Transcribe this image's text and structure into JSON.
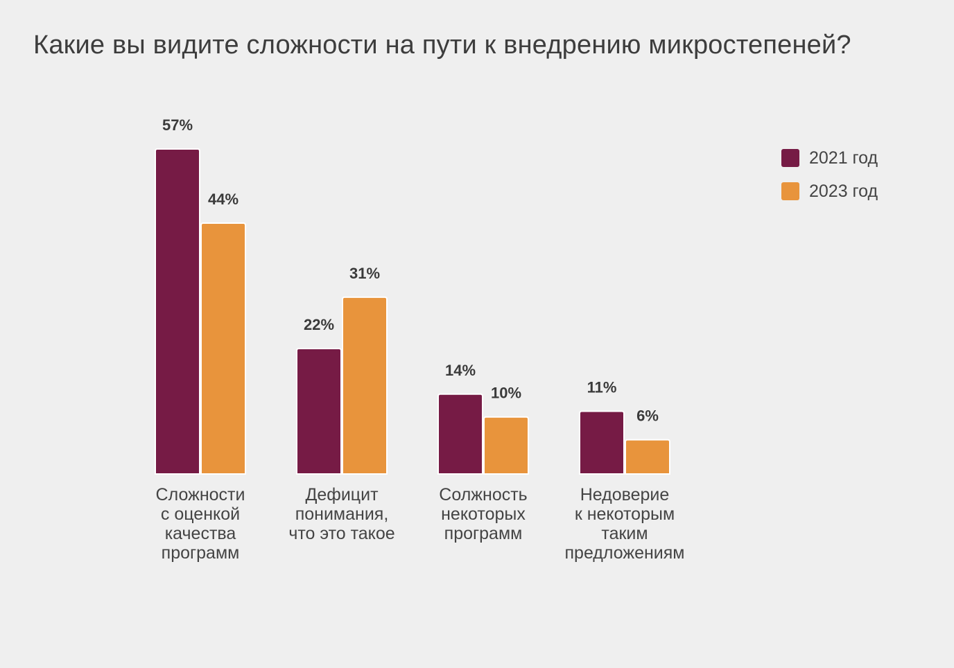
{
  "chart_data": {
    "type": "bar",
    "title": "Какие вы видите сложности на пути к внедрению микростепеней?",
    "categories": [
      [
        "Сложности",
        "с оценкой",
        "качества",
        "программ"
      ],
      [
        "Дефицит",
        "понимания,",
        "что это такое"
      ],
      [
        "Солжность",
        "некоторых",
        "программ"
      ],
      [
        "Недоверие",
        "к некоторым",
        "таким",
        "предложениям"
      ]
    ],
    "series": [
      {
        "name": "2021 год",
        "color": "#761b45",
        "values": [
          57,
          22,
          14,
          11
        ],
        "labels": [
          "57%",
          "22%",
          "14%",
          "11%"
        ]
      },
      {
        "name": "2023 год",
        "color": "#e8943c",
        "values": [
          44,
          31,
          10,
          6
        ],
        "labels": [
          "44%",
          "31%",
          "10%",
          "6%"
        ]
      }
    ],
    "ylim": [
      0,
      57
    ],
    "value_unit": "%",
    "grid": false,
    "legend_position": "top-right",
    "xlabel": "",
    "ylabel": ""
  }
}
